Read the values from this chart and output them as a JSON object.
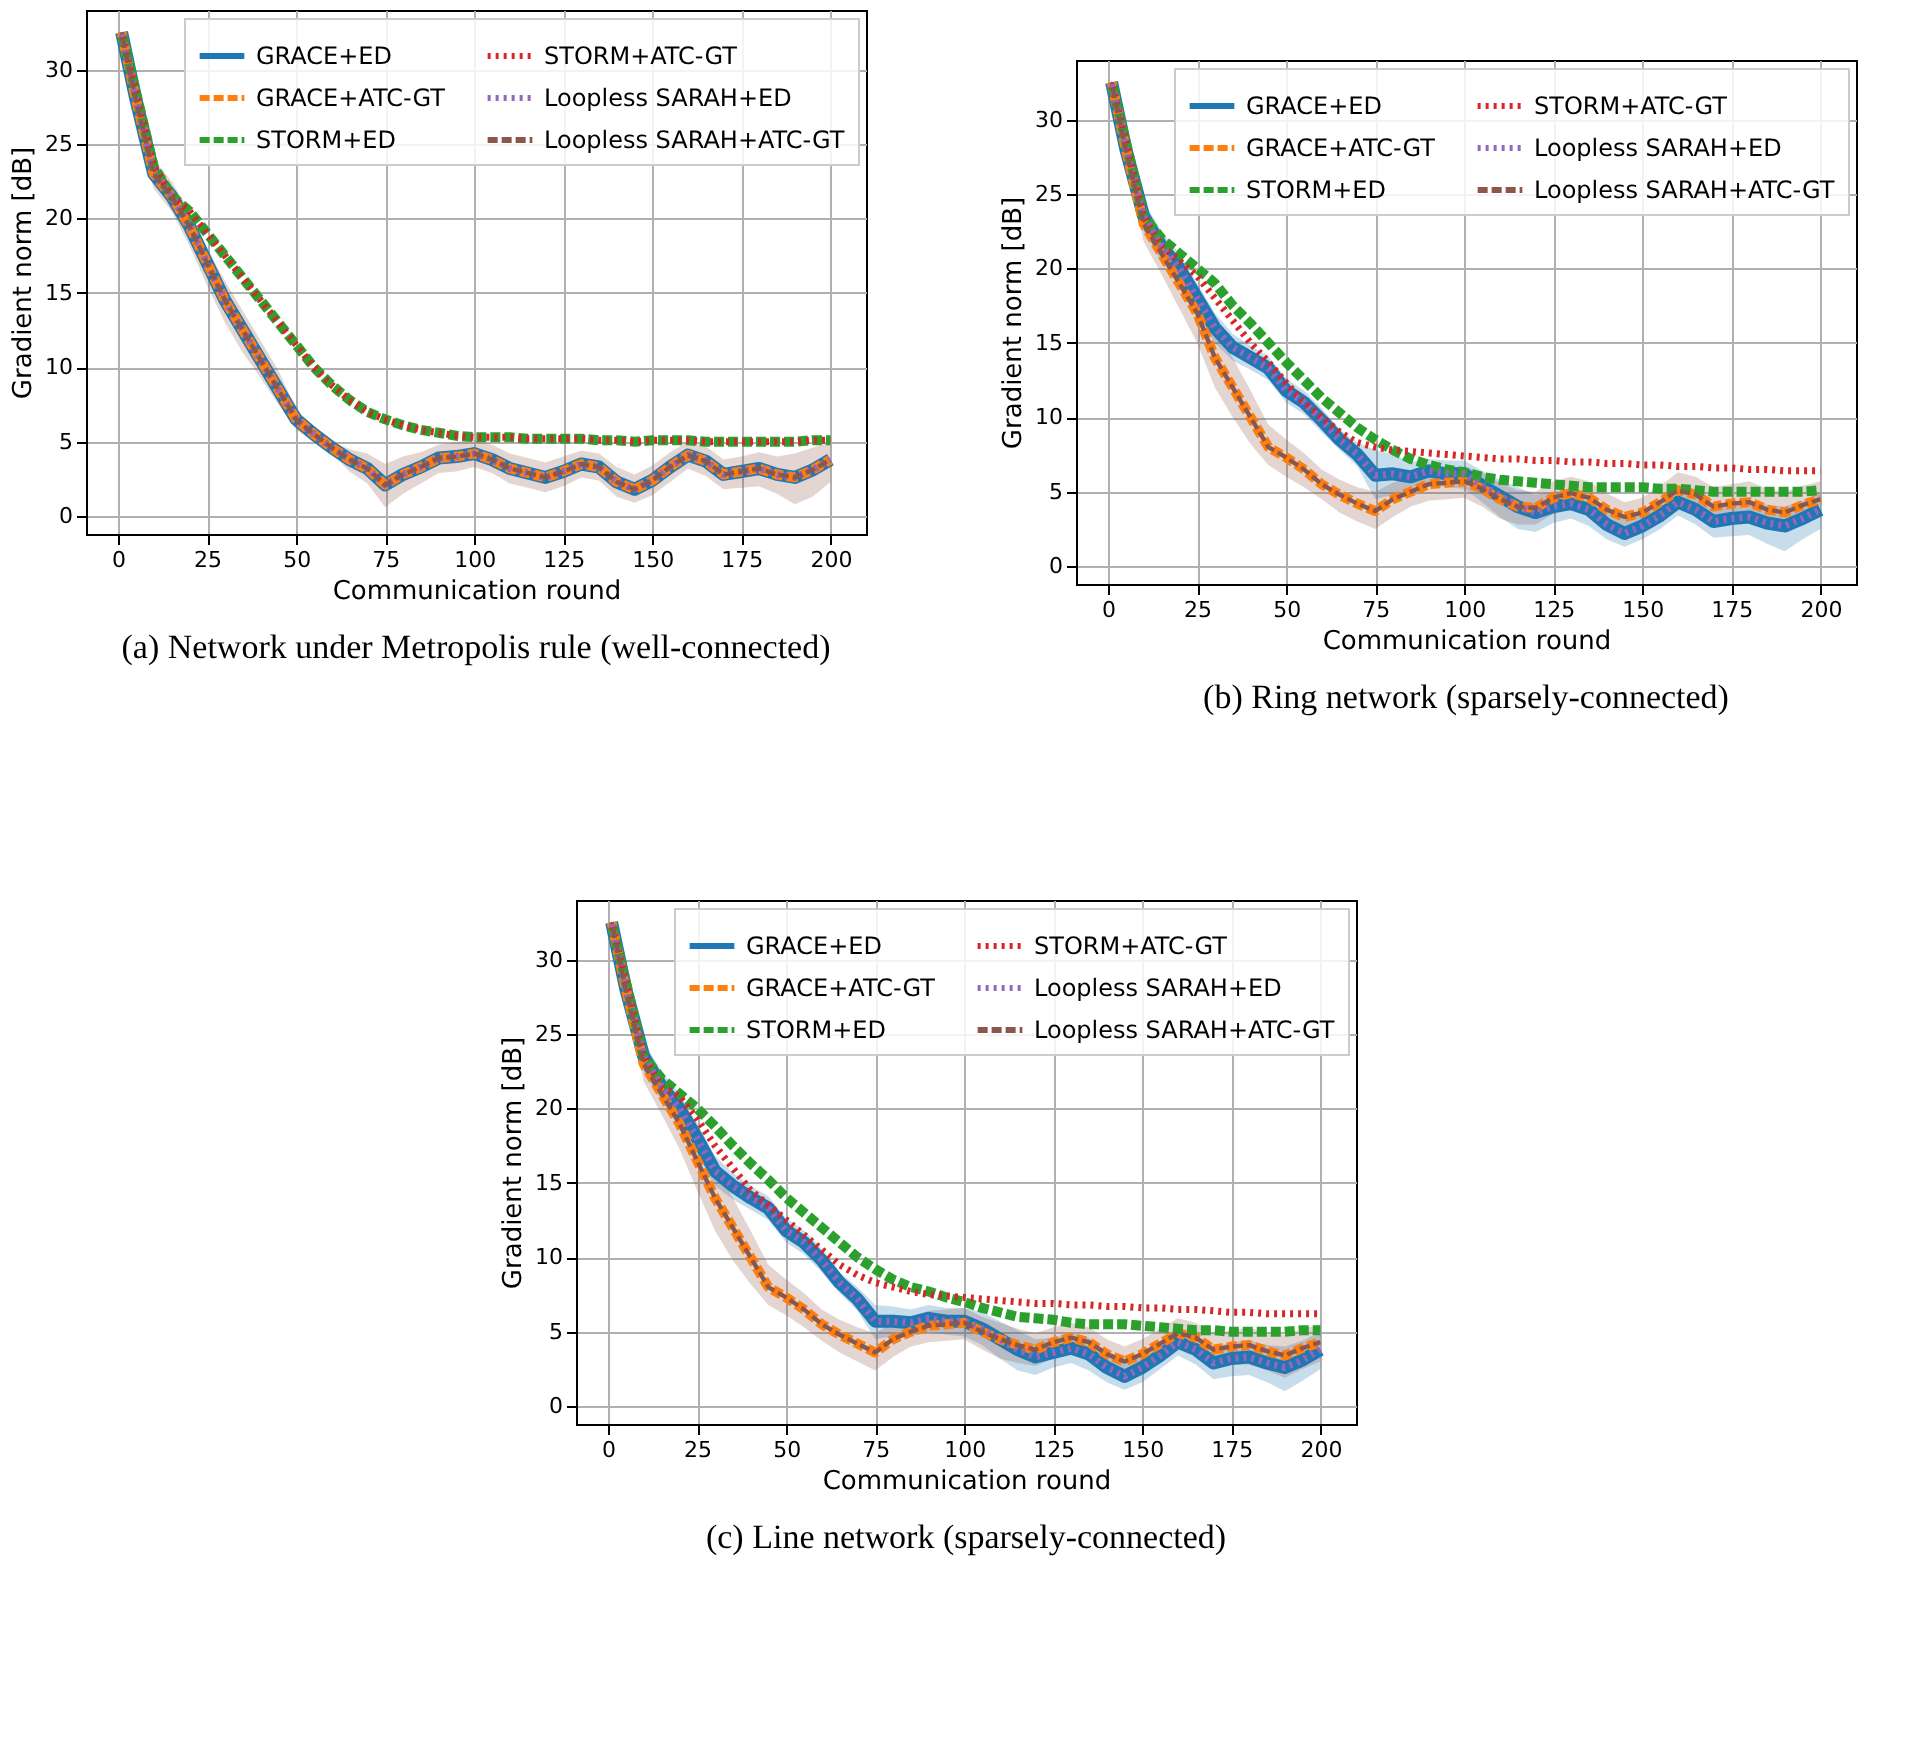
{
  "chart_data": [
    {
      "type": "line",
      "title": "(a) Network under Metropolis rule (well-connected)",
      "xlabel": "Communication round",
      "ylabel": "Gradient norm [dB]",
      "x": [
        1,
        5,
        10,
        15,
        20,
        25,
        30,
        35,
        40,
        45,
        50,
        55,
        60,
        65,
        70,
        75,
        80,
        85,
        90,
        95,
        100,
        105,
        110,
        115,
        120,
        125,
        130,
        135,
        140,
        145,
        150,
        155,
        160,
        165,
        170,
        175,
        180,
        185,
        190,
        195,
        200
      ],
      "xlim": [
        -9,
        210
      ],
      "xticks": [
        0,
        25,
        50,
        75,
        100,
        125,
        150,
        175,
        200
      ],
      "ylim": [
        -1.2,
        34
      ],
      "yticks": [
        0,
        5,
        10,
        15,
        20,
        25,
        30
      ],
      "grid": true,
      "legend": "top right",
      "series": [
        {
          "name": "GRACE+ED",
          "color": "#1f77b4",
          "line_style": "solid",
          "values": [
            32.5,
            28,
            23,
            21.5,
            19.5,
            17,
            14.5,
            12.5,
            10.5,
            8.5,
            6.5,
            5.5,
            4.6,
            3.8,
            3.2,
            2.1,
            2.8,
            3.3,
            3.9,
            4.0,
            4.2,
            3.8,
            3.2,
            2.9,
            2.6,
            3.0,
            3.5,
            3.3,
            2.3,
            1.8,
            2.4,
            3.3,
            4.1,
            3.7,
            2.8,
            3.0,
            3.2,
            2.8,
            2.6,
            3.1,
            3.8
          ]
        },
        {
          "name": "GRACE+ATC-GT",
          "color": "#ff7f0e",
          "line_style": "dashed",
          "values": [
            32.5,
            28,
            23,
            21.5,
            19.5,
            17,
            14.5,
            12.5,
            10.5,
            8.5,
            6.5,
            5.5,
            4.6,
            3.8,
            3.2,
            2.1,
            2.8,
            3.3,
            3.9,
            4.0,
            4.2,
            3.8,
            3.2,
            2.9,
            2.6,
            3.0,
            3.5,
            3.3,
            2.3,
            1.8,
            2.4,
            3.3,
            4.1,
            3.7,
            2.8,
            3.0,
            3.2,
            2.8,
            2.6,
            3.1,
            3.8
          ]
        },
        {
          "name": "STORM+ED",
          "color": "#2ca02c",
          "line_style": "dashed",
          "values": [
            32.5,
            28.5,
            23.5,
            21.5,
            20.5,
            19,
            17.5,
            16,
            14.5,
            13,
            11.5,
            10,
            8.8,
            7.8,
            7,
            6.5,
            6.1,
            5.8,
            5.6,
            5.4,
            5.3,
            5.3,
            5.3,
            5.2,
            5.2,
            5.2,
            5.2,
            5.1,
            5.1,
            5.0,
            5.1,
            5.1,
            5.1,
            5.0,
            5.0,
            5.0,
            5.0,
            5.0,
            5.0,
            5.1,
            5.1
          ]
        },
        {
          "name": "STORM+ATC-GT",
          "color": "#d62728",
          "line_style": "dotted",
          "values": [
            32.5,
            28.5,
            23.5,
            21.5,
            20.5,
            19,
            17.5,
            16,
            14.5,
            13,
            11.5,
            10,
            8.8,
            7.8,
            7,
            6.5,
            6.1,
            5.8,
            5.6,
            5.4,
            5.3,
            5.3,
            5.3,
            5.2,
            5.2,
            5.2,
            5.2,
            5.1,
            5.1,
            5.0,
            5.1,
            5.1,
            5.1,
            5.0,
            5.0,
            5.0,
            5.0,
            5.0,
            5.0,
            5.1,
            5.1
          ]
        },
        {
          "name": "Loopless SARAH+ED",
          "color": "#9467bd",
          "line_style": "dotted",
          "values": [
            32.5,
            28,
            23,
            21.5,
            19.5,
            17,
            14.5,
            12.5,
            10.5,
            8.5,
            6.5,
            5.5,
            4.6,
            3.8,
            3.2,
            2.1,
            2.8,
            3.3,
            3.9,
            4.0,
            4.2,
            3.8,
            3.2,
            2.9,
            2.6,
            3.0,
            3.5,
            3.3,
            2.3,
            1.8,
            2.4,
            3.3,
            4.1,
            3.7,
            2.8,
            3.0,
            3.2,
            2.8,
            2.6,
            3.1,
            3.8
          ]
        },
        {
          "name": "Loopless SARAH+ATC-GT",
          "color": "#8c564b",
          "line_style": "dashed",
          "values": [
            32.5,
            28,
            23,
            21.5,
            19.5,
            17,
            14.5,
            12.5,
            10.5,
            8.5,
            6.5,
            5.5,
            4.6,
            3.8,
            3.2,
            2.1,
            2.8,
            3.3,
            3.9,
            4.0,
            4.2,
            3.8,
            3.2,
            2.9,
            2.6,
            3.0,
            3.5,
            3.3,
            2.3,
            1.8,
            2.4,
            3.3,
            4.1,
            3.7,
            2.8,
            3.0,
            3.2,
            2.8,
            2.6,
            3.1,
            3.8
          ],
          "lower": [
            32.3,
            27,
            22,
            20.5,
            18.2,
            15.5,
            13,
            11,
            9.3,
            7.5,
            5.8,
            5.0,
            4.2,
            3.0,
            2.2,
            0.6,
            1.5,
            2.2,
            2.9,
            3.0,
            3.3,
            2.9,
            2.2,
            1.9,
            1.6,
            2.0,
            2.6,
            2.4,
            1.3,
            0.9,
            1.4,
            2.3,
            3.2,
            2.7,
            1.8,
            1.9,
            2.0,
            1.5,
            0.8,
            1.3,
            2.3
          ],
          "upper": [
            32.7,
            28.8,
            24,
            22.5,
            20.5,
            18,
            15.8,
            13.8,
            11.8,
            9.8,
            7.2,
            6.0,
            5.0,
            4.5,
            4.2,
            3.5,
            4.0,
            4.3,
            4.8,
            5.0,
            5.1,
            4.8,
            4.2,
            3.9,
            3.6,
            4.0,
            4.4,
            4.2,
            3.3,
            2.8,
            3.4,
            4.3,
            5.0,
            4.7,
            3.8,
            4.0,
            4.3,
            4.0,
            4.2,
            4.6,
            5.0
          ]
        }
      ]
    },
    {
      "type": "line",
      "title": "(b) Ring network (sparsely-connected)",
      "xlabel": "Communication round",
      "ylabel": "Gradient norm [dB]",
      "x": [
        1,
        5,
        10,
        15,
        20,
        25,
        30,
        35,
        40,
        45,
        50,
        55,
        60,
        65,
        70,
        75,
        80,
        85,
        90,
        95,
        100,
        105,
        110,
        115,
        120,
        125,
        130,
        135,
        140,
        145,
        150,
        155,
        160,
        165,
        170,
        175,
        180,
        185,
        190,
        195,
        200
      ],
      "xlim": [
        -9,
        210
      ],
      "xticks": [
        0,
        25,
        50,
        75,
        100,
        125,
        150,
        175,
        200
      ],
      "ylim": [
        -1.2,
        34
      ],
      "yticks": [
        0,
        5,
        10,
        15,
        20,
        25,
        30
      ],
      "grid": true,
      "legend": "top right",
      "series": [
        {
          "name": "GRACE+ED",
          "color": "#1f77b4",
          "line_style": "solid",
          "values": [
            32.5,
            28,
            23.5,
            21.5,
            20,
            18,
            16,
            14.7,
            14,
            13.3,
            11.8,
            11,
            9.8,
            8.5,
            7.5,
            6.1,
            6.2,
            6.0,
            6.4,
            6.2,
            6.2,
            5.4,
            4.7,
            4.0,
            3.6,
            4.0,
            4.2,
            3.8,
            2.8,
            2.2,
            2.7,
            3.4,
            4.3,
            3.8,
            3.0,
            3.2,
            3.3,
            2.9,
            2.7,
            3.2,
            3.8
          ],
          "lower": [
            32.3,
            27.2,
            22.5,
            20.5,
            19,
            17,
            15,
            13.8,
            13.2,
            12.5,
            11,
            10.2,
            9,
            7.8,
            6.7,
            4.5,
            4.8,
            5.0,
            5.5,
            5.3,
            5.2,
            4.3,
            3.3,
            2.5,
            2.3,
            2.9,
            3.2,
            2.7,
            1.8,
            1.3,
            1.8,
            2.5,
            3.4,
            2.8,
            1.9,
            2.0,
            2.1,
            1.5,
            1.0,
            1.8,
            2.5
          ],
          "upper": [
            32.7,
            28.8,
            24.5,
            22.5,
            21,
            19,
            17,
            15.6,
            14.8,
            14.1,
            12.6,
            11.8,
            10.6,
            9.2,
            8.3,
            7.8,
            7.5,
            7.0,
            7.2,
            7.1,
            7.1,
            6.4,
            5.8,
            5.3,
            4.8,
            5.0,
            5.2,
            4.8,
            3.8,
            3.1,
            3.6,
            4.3,
            5.2,
            4.8,
            4.0,
            4.3,
            4.4,
            4.1,
            4.0,
            4.4,
            5.0
          ]
        },
        {
          "name": "GRACE+ATC-GT",
          "color": "#ff7f0e",
          "line_style": "dashed",
          "values": [
            32.5,
            28,
            23,
            21,
            19,
            17,
            14,
            12,
            10,
            8,
            7.3,
            6.5,
            5.5,
            4.8,
            4.2,
            3.7,
            4.5,
            5.0,
            5.5,
            5.6,
            5.7,
            5.2,
            4.5,
            4.0,
            3.9,
            4.6,
            4.9,
            4.6,
            3.8,
            3.3,
            3.6,
            4.3,
            5.1,
            4.8,
            4.0,
            4.2,
            4.3,
            3.8,
            3.6,
            4.1,
            4.5
          ]
        },
        {
          "name": "STORM+ED",
          "color": "#2ca02c",
          "line_style": "dashed",
          "values": [
            32.5,
            28.5,
            23.5,
            22,
            21,
            20,
            19,
            17.5,
            16.3,
            15,
            13.7,
            12.5,
            11.3,
            10.3,
            9.3,
            8.5,
            7.8,
            7.2,
            6.8,
            6.5,
            6.3,
            6.0,
            5.8,
            5.7,
            5.6,
            5.5,
            5.4,
            5.3,
            5.3,
            5.3,
            5.3,
            5.2,
            5.2,
            5.1,
            5.0,
            5.0,
            5.0,
            5.0,
            5.0,
            5.0,
            5.1
          ]
        },
        {
          "name": "STORM+ATC-GT",
          "color": "#d62728",
          "line_style": "dotted",
          "values": [
            32.5,
            28.5,
            23.5,
            21.5,
            20.5,
            19.5,
            18,
            16.5,
            15,
            13.7,
            12.3,
            11,
            10,
            9,
            8.3,
            8,
            7.8,
            7.7,
            7.6,
            7.5,
            7.4,
            7.3,
            7.2,
            7.2,
            7.1,
            7.1,
            7.0,
            7.0,
            6.9,
            6.9,
            6.8,
            6.8,
            6.7,
            6.7,
            6.6,
            6.6,
            6.5,
            6.5,
            6.4,
            6.4,
            6.4
          ]
        },
        {
          "name": "Loopless SARAH+ED",
          "color": "#9467bd",
          "line_style": "dotted",
          "values": [
            32.5,
            28,
            23.5,
            21.5,
            20,
            18,
            16,
            14.7,
            14,
            13.3,
            11.8,
            11,
            9.8,
            8.5,
            7.5,
            6.1,
            6.2,
            6.0,
            6.4,
            6.2,
            6.2,
            5.4,
            4.7,
            4.0,
            3.6,
            4.0,
            4.2,
            3.8,
            2.8,
            2.2,
            2.7,
            3.4,
            4.3,
            3.8,
            3.0,
            3.2,
            3.3,
            2.9,
            2.7,
            3.2,
            3.8
          ]
        },
        {
          "name": "Loopless SARAH+ATC-GT",
          "color": "#8c564b",
          "line_style": "dashed",
          "values": [
            32.5,
            28,
            23,
            21,
            19,
            17,
            14,
            12,
            10,
            8,
            7.3,
            6.5,
            5.5,
            4.8,
            4.2,
            3.7,
            4.5,
            5.0,
            5.5,
            5.6,
            5.7,
            5.2,
            4.5,
            4.0,
            3.9,
            4.6,
            4.9,
            4.6,
            3.8,
            3.3,
            3.6,
            4.3,
            5.1,
            4.8,
            4.0,
            4.2,
            4.3,
            3.8,
            3.6,
            4.1,
            4.5
          ],
          "lower": [
            32.3,
            27,
            21.8,
            19.6,
            17.3,
            15,
            12,
            10,
            8.2,
            6.8,
            6.0,
            5.3,
            4.5,
            3.6,
            3.0,
            2.5,
            3.3,
            4.0,
            4.4,
            4.5,
            4.6,
            4.0,
            3.2,
            2.8,
            2.8,
            3.5,
            3.8,
            3.5,
            2.7,
            2.3,
            2.6,
            3.2,
            4.0,
            3.7,
            2.8,
            3.0,
            2.9,
            2.5,
            2.3,
            2.8,
            3.3
          ],
          "upper": [
            32.7,
            28.8,
            24,
            22.2,
            20.5,
            18.8,
            16,
            14,
            11.8,
            9.5,
            8.5,
            7.6,
            6.5,
            5.8,
            5.3,
            5.0,
            5.6,
            6.0,
            6.5,
            6.6,
            6.7,
            6.3,
            5.6,
            5.1,
            5.0,
            5.7,
            6.0,
            5.7,
            4.9,
            4.3,
            4.6,
            5.4,
            6.3,
            6.0,
            5.3,
            5.5,
            5.7,
            5.2,
            5.0,
            5.4,
            5.7
          ]
        }
      ]
    },
    {
      "type": "line",
      "title": "(c) Line network (sparsely-connected)",
      "xlabel": "Communication round",
      "ylabel": "Gradient norm [dB]",
      "x": [
        1,
        5,
        10,
        15,
        20,
        25,
        30,
        35,
        40,
        45,
        50,
        55,
        60,
        65,
        70,
        75,
        80,
        85,
        90,
        95,
        100,
        105,
        110,
        115,
        120,
        125,
        130,
        135,
        140,
        145,
        150,
        155,
        160,
        165,
        170,
        175,
        180,
        185,
        190,
        195,
        200
      ],
      "xlim": [
        -9,
        210
      ],
      "xticks": [
        0,
        25,
        50,
        75,
        100,
        125,
        150,
        175,
        200
      ],
      "ylim": [
        -1.2,
        34
      ],
      "yticks": [
        0,
        5,
        10,
        15,
        20,
        25,
        30
      ],
      "grid": true,
      "legend": "top right",
      "series": [
        {
          "name": "GRACE+ED",
          "color": "#1f77b4",
          "line_style": "solid",
          "values": [
            32.5,
            28,
            23.5,
            21.5,
            20,
            18,
            15.8,
            14.8,
            14,
            13.3,
            11.8,
            11,
            9.8,
            8.3,
            7.2,
            5.7,
            5.7,
            5.6,
            5.9,
            5.7,
            5.7,
            5.2,
            4.5,
            3.8,
            3.3,
            3.6,
            3.9,
            3.5,
            2.6,
            2.0,
            2.6,
            3.4,
            4.3,
            3.8,
            2.9,
            3.2,
            3.3,
            2.9,
            2.6,
            3.1,
            3.8
          ],
          "lower": [
            32.3,
            27.2,
            22.5,
            20.5,
            19,
            17,
            14.8,
            13.9,
            13.2,
            12.5,
            11,
            10.2,
            9,
            7.6,
            6.4,
            4.5,
            4.7,
            4.7,
            5.0,
            4.8,
            4.7,
            4.1,
            3.2,
            2.4,
            2.1,
            2.6,
            2.9,
            2.4,
            1.6,
            1.1,
            1.6,
            2.5,
            3.4,
            2.8,
            1.8,
            2.0,
            2.1,
            1.6,
            1.0,
            1.7,
            2.5
          ],
          "upper": [
            32.7,
            28.8,
            24.5,
            22.5,
            21,
            19,
            16.8,
            15.7,
            14.8,
            14.1,
            12.6,
            11.8,
            10.6,
            9.0,
            8.0,
            6.8,
            6.7,
            6.5,
            6.8,
            6.6,
            6.6,
            6.3,
            5.7,
            5.1,
            4.5,
            4.6,
            4.9,
            4.6,
            3.6,
            2.9,
            3.6,
            4.3,
            5.2,
            4.8,
            3.9,
            4.3,
            4.4,
            4.1,
            4.0,
            4.4,
            5.0
          ]
        },
        {
          "name": "GRACE+ATC-GT",
          "color": "#ff7f0e",
          "line_style": "dashed",
          "values": [
            32.5,
            28,
            23,
            21,
            19,
            16.5,
            14,
            12,
            10,
            8,
            7.3,
            6.5,
            5.5,
            4.8,
            4.2,
            3.6,
            4.5,
            5.0,
            5.4,
            5.5,
            5.6,
            5.0,
            4.5,
            4.1,
            3.8,
            4.3,
            4.6,
            4.3,
            3.5,
            3.0,
            3.5,
            4.2,
            4.9,
            4.6,
            3.8,
            4.0,
            4.1,
            3.7,
            3.4,
            3.9,
            4.3
          ]
        },
        {
          "name": "STORM+ED",
          "color": "#2ca02c",
          "line_style": "dashed",
          "values": [
            32.5,
            28.5,
            23.5,
            22,
            21,
            20,
            18.8,
            17.5,
            16.3,
            15.2,
            14,
            13,
            12,
            11,
            10,
            9.2,
            8.5,
            8,
            7.7,
            7.3,
            7,
            6.6,
            6.3,
            6.0,
            5.9,
            5.8,
            5.6,
            5.5,
            5.5,
            5.5,
            5.4,
            5.3,
            5.2,
            5.1,
            5.1,
            5.0,
            5.0,
            5.0,
            5.0,
            5.1,
            5.1
          ]
        },
        {
          "name": "STORM+ATC-GT",
          "color": "#d62728",
          "line_style": "dotted",
          "values": [
            32.5,
            28.5,
            23.5,
            21.5,
            20.8,
            19.3,
            17.5,
            16,
            14.5,
            13.5,
            12.5,
            11.5,
            10.5,
            9.5,
            8.8,
            8.3,
            8,
            7.7,
            7.5,
            7.4,
            7.3,
            7.2,
            7.1,
            7.0,
            6.9,
            6.9,
            6.8,
            6.8,
            6.7,
            6.7,
            6.6,
            6.6,
            6.5,
            6.5,
            6.4,
            6.3,
            6.3,
            6.2,
            6.2,
            6.2,
            6.2
          ]
        },
        {
          "name": "Loopless SARAH+ED",
          "color": "#9467bd",
          "line_style": "dotted",
          "values": [
            32.5,
            28,
            23.5,
            21.5,
            20,
            18,
            15.8,
            14.8,
            14,
            13.3,
            11.8,
            11,
            9.8,
            8.3,
            7.2,
            5.7,
            5.7,
            5.6,
            5.9,
            5.7,
            5.7,
            5.2,
            4.5,
            3.8,
            3.3,
            3.6,
            3.9,
            3.5,
            2.6,
            2.0,
            2.6,
            3.4,
            4.3,
            3.8,
            2.9,
            3.2,
            3.3,
            2.9,
            2.6,
            3.1,
            3.8
          ]
        },
        {
          "name": "Loopless SARAH+ATC-GT",
          "color": "#8c564b",
          "line_style": "dashed",
          "values": [
            32.5,
            28,
            23,
            21,
            19,
            16.5,
            14,
            12,
            10,
            8,
            7.3,
            6.5,
            5.5,
            4.8,
            4.2,
            3.6,
            4.5,
            5.0,
            5.4,
            5.5,
            5.6,
            5.0,
            4.5,
            4.1,
            3.8,
            4.3,
            4.6,
            4.3,
            3.5,
            3.0,
            3.5,
            4.2,
            4.9,
            4.6,
            3.8,
            4.0,
            4.1,
            3.7,
            3.4,
            3.9,
            4.3
          ],
          "lower": [
            32.3,
            27,
            21.8,
            19.6,
            17.3,
            14.5,
            11.8,
            9.8,
            8.2,
            6.8,
            6.1,
            5.3,
            4.4,
            3.6,
            3.0,
            2.4,
            3.3,
            4.0,
            4.3,
            4.4,
            4.5,
            3.8,
            3.2,
            2.9,
            2.7,
            3.2,
            3.5,
            3.2,
            2.4,
            2.0,
            2.5,
            3.2,
            3.8,
            3.5,
            2.6,
            2.8,
            2.8,
            2.4,
            1.9,
            2.5,
            3.0
          ],
          "upper": [
            32.7,
            28.8,
            24,
            22.2,
            20.5,
            18.3,
            16,
            14,
            11.8,
            9.5,
            8.5,
            7.6,
            6.5,
            5.8,
            5.3,
            4.9,
            5.6,
            6.0,
            6.4,
            6.5,
            6.6,
            6.0,
            5.6,
            5.2,
            4.9,
            5.3,
            5.6,
            5.3,
            4.5,
            4.0,
            4.5,
            5.2,
            5.9,
            5.6,
            4.9,
            5.1,
            5.3,
            4.9,
            4.8,
            5.2,
            5.5
          ]
        }
      ]
    }
  ]
}
